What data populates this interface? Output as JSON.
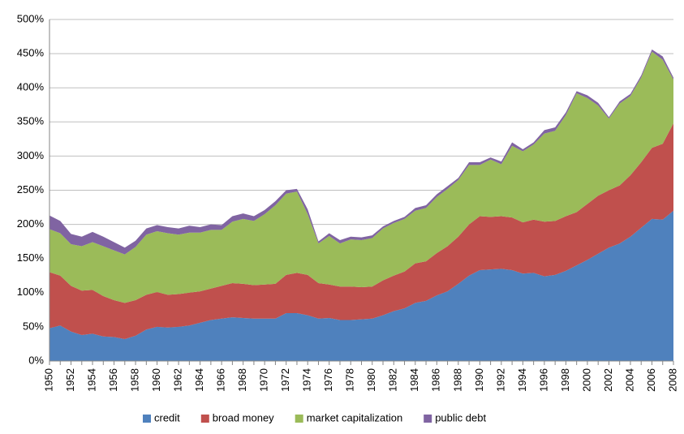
{
  "chart_data": {
    "type": "stacked-area",
    "categories": [
      "1950",
      null,
      "1952",
      null,
      "1954",
      null,
      "1956",
      null,
      "1958",
      null,
      "1960",
      null,
      "1962",
      null,
      "1964",
      null,
      "1966",
      null,
      "1968",
      null,
      "1970",
      null,
      "1972",
      null,
      "1974",
      null,
      "1976",
      null,
      "1978",
      null,
      "1980",
      null,
      "1982",
      null,
      "1984",
      null,
      "1986",
      null,
      "1988",
      null,
      "1990",
      null,
      "1992",
      null,
      "1994",
      null,
      "1996",
      null,
      "1998",
      null,
      "2000",
      null,
      "2002",
      null,
      "2004",
      null,
      "2006",
      null,
      "2008"
    ],
    "series": [
      {
        "name": "credit",
        "color": "#4f81bd",
        "values": [
          48,
          52,
          43,
          38,
          40,
          36,
          35,
          32,
          37,
          46,
          50,
          49,
          50,
          52,
          56,
          60,
          62,
          64,
          63,
          62,
          62,
          62,
          70,
          70,
          67,
          62,
          63,
          60,
          60,
          61,
          62,
          67,
          73,
          77,
          85,
          88,
          96,
          102,
          113,
          125,
          133,
          134,
          135,
          133,
          128,
          129,
          124,
          126,
          132,
          140,
          148,
          157,
          166,
          172,
          182,
          195,
          208,
          207,
          220
        ]
      },
      {
        "name": "broad money",
        "color": "#c0504d",
        "values": [
          82,
          73,
          67,
          65,
          64,
          59,
          54,
          53,
          52,
          51,
          51,
          48,
          48,
          48,
          46,
          46,
          48,
          50,
          50,
          49,
          50,
          51,
          56,
          59,
          59,
          52,
          49,
          49,
          49,
          47,
          47,
          51,
          52,
          54,
          58,
          58,
          62,
          66,
          69,
          75,
          79,
          77,
          77,
          77,
          75,
          78,
          80,
          79,
          80,
          78,
          82,
          85,
          84,
          85,
          90,
          96,
          104,
          111,
          128
        ]
      },
      {
        "name": "market capitalization",
        "color": "#9bbb59",
        "values": [
          63,
          62,
          61,
          65,
          70,
          73,
          73,
          71,
          78,
          88,
          89,
          90,
          87,
          88,
          86,
          86,
          82,
          90,
          95,
          94,
          103,
          115,
          119,
          119,
          89,
          58,
          71,
          63,
          69,
          69,
          71,
          76,
          77,
          77,
          77,
          78,
          82,
          84,
          83,
          87,
          75,
          84,
          76,
          105,
          104,
          110,
          129,
          132,
          148,
          174,
          155,
          132,
          105,
          120,
          116,
          124,
          141,
          123,
          64
        ]
      },
      {
        "name": "public debt",
        "color": "#8064a2",
        "values": [
          20,
          18,
          15,
          14,
          15,
          14,
          12,
          10,
          9,
          9,
          9,
          9,
          9,
          10,
          8,
          8,
          7,
          8,
          8,
          7,
          6,
          6,
          5,
          4,
          7,
          3,
          4,
          5,
          4,
          4,
          4,
          3,
          3,
          3,
          4,
          4,
          4,
          4,
          3,
          4,
          4,
          3,
          4,
          5,
          3,
          3,
          5,
          5,
          4,
          3,
          4,
          4,
          2,
          3,
          3,
          3,
          3,
          5,
          3
        ]
      }
    ],
    "ylim": [
      0,
      500
    ],
    "yticks": [
      {
        "value": 0,
        "label": "0%"
      },
      {
        "value": 50,
        "label": "50%"
      },
      {
        "value": 100,
        "label": "100%"
      },
      {
        "value": 150,
        "label": "150%"
      },
      {
        "value": 200,
        "label": "200%"
      },
      {
        "value": 250,
        "label": "250%"
      },
      {
        "value": 300,
        "label": "300%"
      },
      {
        "value": 350,
        "label": "350%"
      },
      {
        "value": 400,
        "label": "400%"
      },
      {
        "value": 450,
        "label": "450%"
      },
      {
        "value": 500,
        "label": "500%"
      }
    ],
    "grid": true,
    "legend": "bottom"
  }
}
